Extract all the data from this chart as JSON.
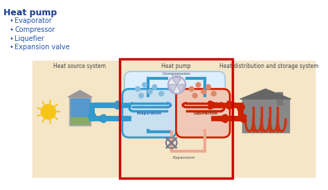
{
  "title": "Heat pump",
  "bullet_items": [
    "Evaporator",
    "Compressor",
    "Liquefier",
    "Expansion valve"
  ],
  "title_color": "#1a3a8c",
  "bullet_color": "#2255aa",
  "bg_color": "#ffffff",
  "diagram_bg": "#f5e6c8",
  "red_box_color": "#cc0000",
  "blue_pipe_color": "#3399cc",
  "red_pipe_color": "#cc2200",
  "blue_light": "#b8d8ee",
  "red_light": "#f0b8a0",
  "evap_fill": "#c8e0f0",
  "liq_fill": "#f0c8b8",
  "section_label_color": "#444444",
  "center_label_color": "#444444",
  "evap_label_color": "#1a5fa8",
  "liq_label_color": "#882200",
  "comp_label_color": "#444444",
  "exp_label_color": "#444444",
  "sun_color": "#f5c518",
  "building_color": "#aaaaaa",
  "panel_color": "#5599cc",
  "house_color": "#888888",
  "radiator_color": "#cc3311",
  "dot_blue": "#88bbdd",
  "dot_red": "#dd8866"
}
